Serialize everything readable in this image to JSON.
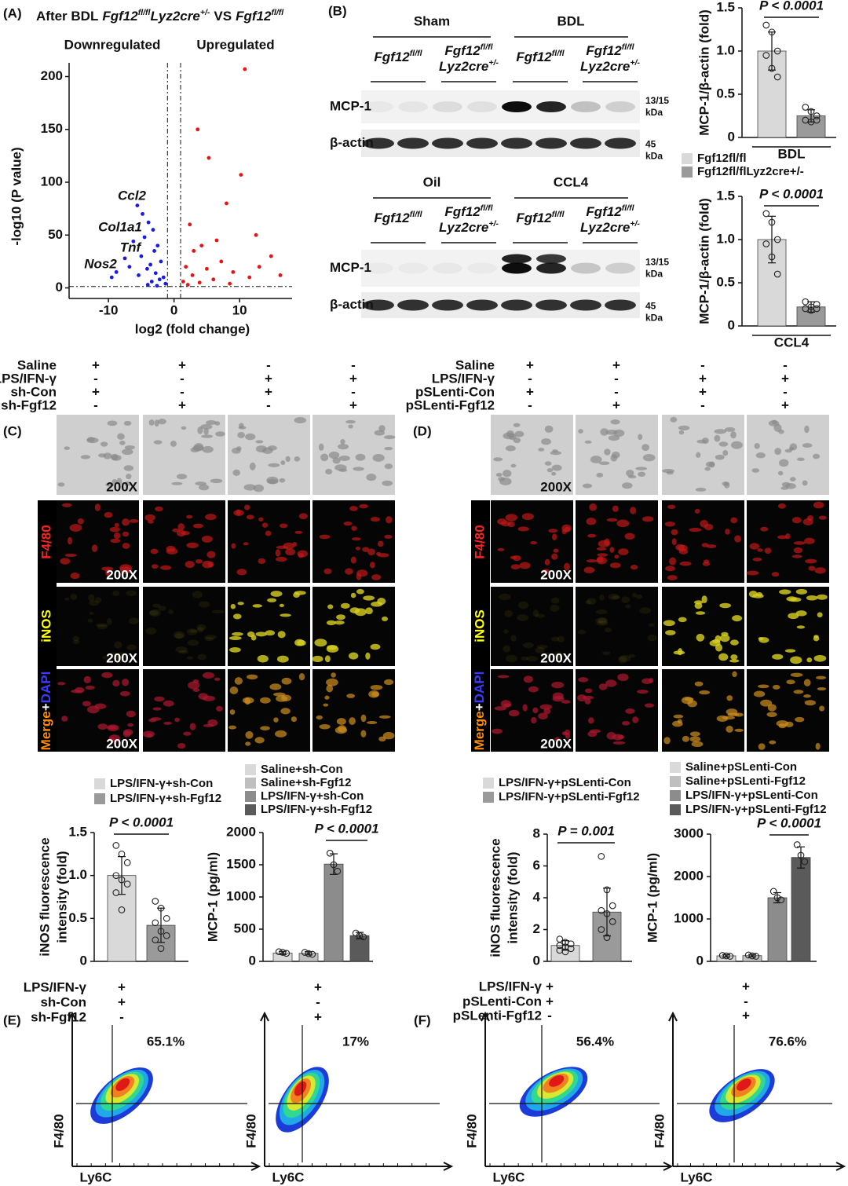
{
  "panels": {
    "A": "(A)",
    "B": "(B)",
    "C": "(C)",
    "D": "(D)",
    "E": "(E)",
    "F": "(F)"
  },
  "volcano_title": [
    "After BDL",
    "Fgf12",
    "fl/fl",
    "Lyz2cre",
    "+/-",
    "VS",
    "Fgf12",
    "fl/fl"
  ],
  "genotype": {
    "gene": "Fgf12",
    "fl": "fl/fl",
    "cre": "Lyz2cre",
    "het": "+/-"
  },
  "blots": [
    {
      "groups": [
        "Sham",
        "BDL"
      ]
    },
    {
      "groups": [
        "Oil",
        "CCL4"
      ]
    }
  ],
  "proteins": [
    "MCP-1",
    "β-actin"
  ],
  "sizes": {
    "mcp": "13/15",
    "actin": "45",
    "unit": "kDa"
  },
  "treatments_C": [
    [
      "Saline",
      "+",
      "+",
      "-",
      "-"
    ],
    [
      "LPS/IFN-γ",
      "-",
      "-",
      "+",
      "+"
    ],
    [
      "sh-Con",
      "+",
      "-",
      "+",
      "-"
    ],
    [
      "sh-Fgf12",
      "-",
      "+",
      "-",
      "+"
    ]
  ],
  "treatments_D": [
    [
      "Saline",
      "+",
      "+",
      "-",
      "-"
    ],
    [
      "LPS/IFN-γ",
      "-",
      "-",
      "+",
      "+"
    ],
    [
      "pSLenti-Con",
      "+",
      "-",
      "+",
      "-"
    ],
    [
      "pSLenti-Fgf12",
      "-",
      "+",
      "-",
      "+"
    ]
  ],
  "stains": {
    "f480": "F4/80",
    "inos": "iNOS",
    "merge": [
      "Merge",
      "+",
      "DAPI"
    ]
  },
  "magnification": "200X",
  "flow": {
    "treatments_E": [
      [
        "LPS/IFN-γ",
        "+",
        "+"
      ],
      [
        "sh-Con",
        "+",
        "-"
      ],
      [
        "sh-Fgf12",
        "-",
        "+"
      ]
    ],
    "treatments_F": [
      [
        "LPS/IFN-γ",
        "+",
        "+"
      ],
      [
        "pSLenti-Con",
        "+",
        "-"
      ],
      [
        "pSLenti-Fgf12",
        "-",
        "+"
      ]
    ],
    "xlabel": "Ly6C",
    "ylabel": "F4/80",
    "gates": [
      "65.1%",
      "17%",
      "56.4%",
      "76.6%"
    ]
  },
  "chart_data": [
    {
      "type": "scatter",
      "xlabel": "log2 (fold change)",
      "ylabel": "-log10 (P value)",
      "xlim": [
        -16,
        18
      ],
      "ylim": [
        -10,
        213
      ],
      "xticks": [
        -10,
        0,
        10
      ],
      "yticks": [
        0,
        50,
        100,
        150,
        200
      ],
      "vlines": [
        -1,
        1
      ],
      "hline": 1.3,
      "annotations": [
        "Ccl2",
        "Col1a1",
        "Tnf",
        "Nos2"
      ],
      "series": [
        {
          "name": "Downregulated",
          "color": "#1a1ae6",
          "x": [
            -5.6,
            -4.8,
            -3.9,
            -3.2,
            -4.5,
            -6.2,
            -2.5,
            -3.0,
            -7.5,
            -5.0,
            -2.0,
            -3.6,
            -8.8,
            -4.1,
            -2.8,
            -1.6,
            -6.8,
            -2.2,
            -3.4,
            -5.4,
            -1.3,
            -9.5,
            -4.0,
            -2.6
          ],
          "values": [
            78,
            70,
            62,
            55,
            48,
            44,
            40,
            35,
            28,
            30,
            25,
            22,
            15,
            18,
            14,
            10,
            20,
            8,
            6,
            12,
            4,
            10,
            3,
            2
          ]
        },
        {
          "name": "Upregulated",
          "color": "#e61414",
          "x": [
            10.8,
            10.2,
            3.6,
            5.3,
            8.0,
            12.5,
            16.2,
            14.8,
            6.5,
            2.4,
            4.2,
            3.0,
            7.2,
            1.8,
            5.0,
            9.0,
            2.8,
            11.5,
            6.0,
            1.4,
            3.9,
            13.0,
            8.5,
            2.1
          ],
          "values": [
            207,
            107,
            150,
            123,
            80,
            50,
            12,
            30,
            45,
            60,
            40,
            35,
            25,
            20,
            18,
            15,
            12,
            10,
            8,
            6,
            5,
            20,
            4,
            3
          ]
        }
      ]
    },
    {
      "type": "bar",
      "ylabel": [
        "MCP-1/β-actin (fold)"
      ],
      "categories": [
        "BDL"
      ],
      "ylim": [
        0,
        1.5
      ],
      "yticks": [
        0,
        0.5,
        {
          "value": 1,
          "label": "1.0"
        },
        1.5
      ],
      "annotation": "P < 0.0001",
      "compare": [
        0,
        1
      ],
      "series": [
        {
          "name": "Fgf12fl/fl",
          "color": "#d9d9d9",
          "values": [
            1.0
          ],
          "errors": [
            0.22
          ],
          "points": [
            [
              1.3,
              1.22,
              1.0,
              0.95,
              0.8,
              0.7
            ]
          ]
        },
        {
          "name": "Fgf12fl/flLyz2cre+/-",
          "color": "#9a9a9a",
          "values": [
            0.25
          ],
          "errors": [
            0.07
          ],
          "points": [
            [
              0.35,
              0.3,
              0.25,
              0.2,
              0.18,
              0.2
            ]
          ]
        }
      ]
    },
    {
      "type": "bar",
      "ylabel": [
        "MCP-1/β-actin (fold)"
      ],
      "categories": [
        "CCL4"
      ],
      "ylim": [
        0,
        1.5
      ],
      "yticks": [
        0,
        0.5,
        {
          "value": 1,
          "label": "1.0"
        },
        1.5
      ],
      "annotation": "P < 0.0001",
      "compare": [
        0,
        1
      ],
      "series": [
        {
          "color": "#d9d9d9",
          "values": [
            1.0
          ],
          "errors": [
            0.27
          ],
          "points": [
            [
              1.3,
              1.2,
              1.0,
              0.95,
              0.8,
              0.6
            ]
          ]
        },
        {
          "color": "#9a9a9a",
          "values": [
            0.22
          ],
          "errors": [
            0.06
          ],
          "points": [
            [
              0.28,
              0.22,
              0.2,
              0.2,
              0.18,
              0.25
            ]
          ]
        }
      ]
    },
    {
      "type": "bar",
      "ylabel": [
        "iNOS fluorescence",
        "intensity (fold)"
      ],
      "ylim": [
        0,
        1.5
      ],
      "yticks": [
        0,
        0.5,
        {
          "value": 1,
          "label": "1.0"
        },
        1.5
      ],
      "annotation": "P < 0.0001",
      "compare": [
        0,
        1
      ],
      "series": [
        {
          "name": "LPS/IFN-γ+sh-Con",
          "color": "#d9d9d9",
          "values": [
            1.0
          ],
          "errors": [
            0.22
          ],
          "points": [
            [
              1.35,
              1.25,
              1.15,
              1.0,
              0.95,
              0.9,
              0.8,
              0.6
            ]
          ]
        },
        {
          "name": "LPS/IFN-γ+sh-Fgf12",
          "color": "#9a9a9a",
          "values": [
            0.42
          ],
          "errors": [
            0.2
          ],
          "points": [
            [
              0.7,
              0.62,
              0.5,
              0.45,
              0.35,
              0.3,
              0.25,
              0.15
            ]
          ]
        }
      ]
    },
    {
      "type": "bar",
      "ylabel": [
        "MCP-1 (pg/ml)"
      ],
      "ylim": [
        0,
        2000
      ],
      "yticks": [
        0,
        500,
        1000,
        1500,
        2000
      ],
      "annotation": "P < 0.0001",
      "compare": [
        2,
        3
      ],
      "series": [
        {
          "name": "Saline+sh-Con",
          "color": "#d9d9d9",
          "values": [
            130
          ],
          "errors": [
            25
          ],
          "points": [
            [
              150,
              140,
              125
            ]
          ]
        },
        {
          "name": "Saline+sh-Fgf12",
          "color": "#bfbfbf",
          "values": [
            125
          ],
          "errors": [
            25
          ],
          "points": [
            [
              140,
              120,
              110
            ]
          ]
        },
        {
          "name": "LPS/IFN-γ+sh-Con",
          "color": "#8c8c8c",
          "values": [
            1510
          ],
          "errors": [
            160
          ],
          "points": [
            [
              1680,
              1500,
              1400
            ]
          ]
        },
        {
          "name": "LPS/IFN-γ+sh-Fgf12",
          "color": "#5a5a5a",
          "values": [
            400
          ],
          "errors": [
            50
          ],
          "points": [
            [
              440,
              400,
              380
            ]
          ]
        }
      ]
    },
    {
      "type": "bar",
      "ylabel": [
        "iNOS fluorescence",
        "intensity (fold)"
      ],
      "ylim": [
        0,
        8
      ],
      "yticks": [
        0,
        2,
        4,
        6,
        8
      ],
      "annotation": "P = 0.001",
      "compare": [
        0,
        1
      ],
      "series": [
        {
          "name": "LPS/IFN-γ+pSLenti-Con",
          "color": "#d9d9d9",
          "values": [
            1.0
          ],
          "errors": [
            0.3
          ],
          "points": [
            [
              1.4,
              1.2,
              1.1,
              1.0,
              0.9,
              0.8,
              0.7,
              0.6
            ]
          ]
        },
        {
          "name": "LPS/IFN-γ+pSLenti-Fgf12",
          "color": "#9a9a9a",
          "values": [
            3.1
          ],
          "errors": [
            1.5
          ],
          "points": [
            [
              6.6,
              4.5,
              3.5,
              3.2,
              3.0,
              2.5,
              2.0,
              1.5
            ]
          ]
        }
      ]
    },
    {
      "type": "bar",
      "ylabel": [
        "MCP-1 (pg/ml)"
      ],
      "ylim": [
        0,
        3000
      ],
      "yticks": [
        0,
        1000,
        2000,
        3000
      ],
      "annotation": "P < 0.0001",
      "compare": [
        2,
        3
      ],
      "series": [
        {
          "name": "Saline+pSLenti-Con",
          "color": "#d9d9d9",
          "values": [
            130
          ],
          "errors": [
            30
          ],
          "points": [
            [
              140,
              130,
              120
            ]
          ]
        },
        {
          "name": "Saline+pSLenti-Fgf12",
          "color": "#bfbfbf",
          "values": [
            135
          ],
          "errors": [
            30
          ],
          "points": [
            [
              150,
              130,
              120
            ]
          ]
        },
        {
          "name": "LPS/IFN-γ+pSLenti-Con",
          "color": "#8c8c8c",
          "values": [
            1500
          ],
          "errors": [
            120
          ],
          "points": [
            [
              1650,
              1500,
              1450
            ]
          ]
        },
        {
          "name": "LPS/IFN-γ+pSLenti-Fgf12",
          "color": "#5a5a5a",
          "values": [
            2450
          ],
          "errors": [
            250
          ],
          "points": [
            [
              2750,
              2500,
              2350
            ]
          ]
        }
      ]
    }
  ]
}
